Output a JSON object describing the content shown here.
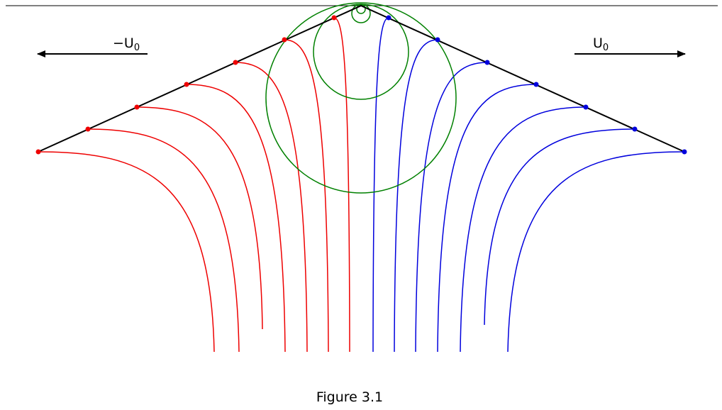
{
  "caption": "Figure 3.1",
  "labels": {
    "left_velocity": "−U",
    "right_velocity": "U",
    "subscript": "0"
  },
  "colors": {
    "left_streamlines": "#ee0000",
    "right_streamlines": "#0000dd",
    "circles": "#008000",
    "outline": "#000000"
  }
}
